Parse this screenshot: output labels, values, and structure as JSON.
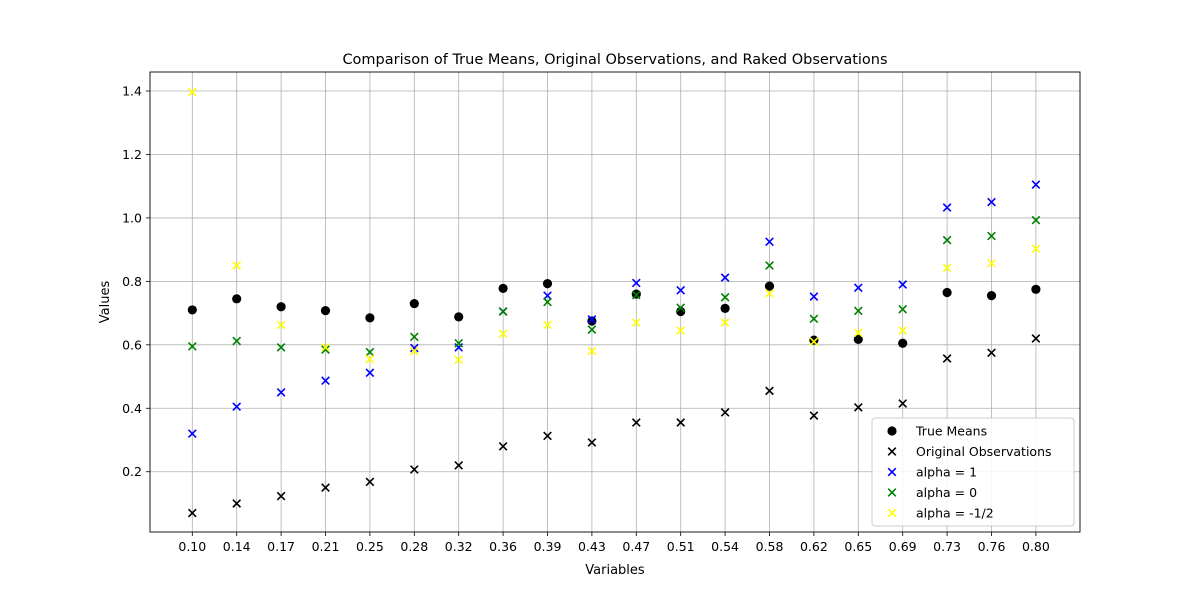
{
  "chart_data": {
    "type": "scatter",
    "title": "Comparison of True Means, Original Observations, and Raked Observations",
    "xlabel": "Variables",
    "ylabel": "Values",
    "categories": [
      "0.10",
      "0.14",
      "0.17",
      "0.21",
      "0.25",
      "0.28",
      "0.32",
      "0.36",
      "0.39",
      "0.43",
      "0.47",
      "0.51",
      "0.54",
      "0.58",
      "0.62",
      "0.65",
      "0.69",
      "0.73",
      "0.76",
      "0.80"
    ],
    "ylim": [
      0.01,
      1.46
    ],
    "yticks": [
      "0.2",
      "0.4",
      "0.6",
      "0.8",
      "1.0",
      "1.2",
      "1.4"
    ],
    "grid": true,
    "legend_position": "lower-right",
    "series": [
      {
        "name": "True Means",
        "marker": "circle",
        "color": "#000000",
        "values": [
          0.71,
          0.745,
          0.72,
          0.708,
          0.685,
          0.73,
          0.688,
          0.778,
          0.793,
          0.675,
          0.76,
          0.705,
          0.715,
          0.785,
          0.615,
          0.617,
          0.605,
          0.765,
          0.755,
          0.775
        ]
      },
      {
        "name": "Original Observations",
        "marker": "x",
        "color": "#000000",
        "values": [
          0.07,
          0.1,
          0.123,
          0.15,
          0.168,
          0.207,
          0.22,
          0.28,
          0.313,
          0.292,
          0.355,
          0.355,
          0.387,
          0.455,
          0.377,
          0.403,
          0.415,
          0.557,
          0.575,
          0.62
        ]
      },
      {
        "name": "alpha = 1",
        "marker": "x",
        "color": "#0000ff",
        "values": [
          0.32,
          0.405,
          0.45,
          0.487,
          0.512,
          0.59,
          0.592,
          0.705,
          0.755,
          0.68,
          0.795,
          0.772,
          0.812,
          0.925,
          0.752,
          0.78,
          0.79,
          1.033,
          1.05,
          1.105
        ]
      },
      {
        "name": "alpha = 0",
        "marker": "x",
        "color": "#008000",
        "values": [
          0.595,
          0.612,
          0.592,
          0.585,
          0.577,
          0.625,
          0.605,
          0.705,
          0.735,
          0.648,
          0.757,
          0.717,
          0.75,
          0.85,
          0.682,
          0.707,
          0.712,
          0.93,
          0.943,
          0.993
        ]
      },
      {
        "name": "alpha = -1/2",
        "marker": "x",
        "color": "#ffff00",
        "values": [
          1.397,
          0.85,
          0.663,
          0.592,
          0.555,
          0.58,
          0.553,
          0.635,
          0.663,
          0.58,
          0.67,
          0.645,
          0.67,
          0.762,
          0.61,
          0.638,
          0.645,
          0.843,
          0.857,
          0.903
        ]
      }
    ]
  }
}
